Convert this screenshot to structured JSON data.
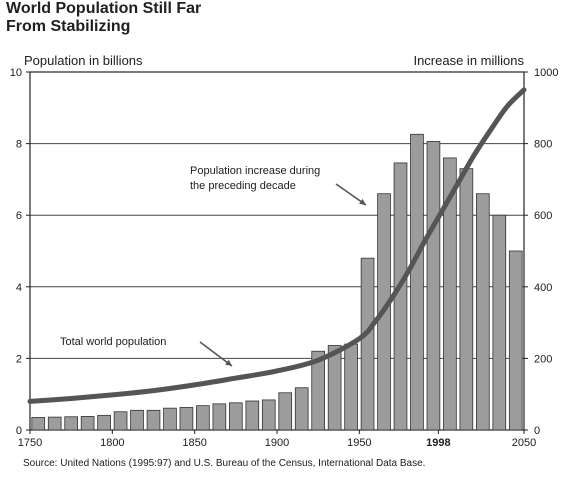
{
  "title_lines": [
    "World Population Still Far",
    "From Stabilizing"
  ],
  "source": "Source: United Nations (1995:97) and U.S. Bureau of the Census, International Data Base.",
  "chart_data": {
    "type": "bar+line",
    "title": "World Population Still Far From Stabilizing",
    "left_axis": {
      "label": "Population in billions",
      "range": [
        0,
        10
      ],
      "ticks": [
        0,
        2,
        4,
        6,
        8,
        10
      ]
    },
    "right_axis": {
      "label": "Increase in millions",
      "range": [
        0,
        1000
      ],
      "ticks": [
        0,
        200,
        400,
        600,
        800,
        1000
      ]
    },
    "x_axis": {
      "range": [
        1750,
        2050
      ],
      "ticks": [
        "1750",
        "1800",
        "1850",
        "1900",
        "1950",
        "1998",
        "2050"
      ],
      "bold_tick": "1998"
    },
    "grid": "horizontal",
    "series": [
      {
        "name": "Population increase during the preceding decade",
        "type": "bar",
        "axis": "right",
        "x": [
          1760,
          1770,
          1780,
          1790,
          1800,
          1810,
          1820,
          1830,
          1840,
          1850,
          1860,
          1870,
          1880,
          1890,
          1900,
          1910,
          1920,
          1930,
          1940,
          1950,
          1960,
          1970,
          1980,
          1990,
          2000,
          2010,
          2020,
          2030,
          2040,
          2050
        ],
        "values": [
          35,
          36,
          37,
          38,
          41,
          51,
          55,
          55,
          61,
          63,
          68,
          73,
          76,
          81,
          84,
          104,
          118,
          220,
          236,
          240,
          480,
          660,
          746,
          826,
          806,
          760,
          730,
          660,
          600,
          500
        ]
      },
      {
        "name": "Total world population",
        "type": "line",
        "axis": "left",
        "x": [
          1750,
          1775,
          1800,
          1825,
          1850,
          1875,
          1900,
          1925,
          1950,
          1960,
          1970,
          1980,
          1990,
          2000,
          2010,
          2020,
          2030,
          2040,
          2050
        ],
        "values": [
          0.8,
          0.88,
          0.98,
          1.1,
          1.26,
          1.45,
          1.65,
          1.95,
          2.55,
          3.05,
          3.7,
          4.45,
          5.3,
          6.1,
          6.9,
          7.7,
          8.4,
          9.05,
          9.5
        ]
      }
    ],
    "annotations": [
      {
        "text": [
          "Population increase during",
          "the preceding decade"
        ],
        "arrow_to_series": 0
      },
      {
        "text": [
          "Total world population"
        ],
        "arrow_to_series": 1
      }
    ]
  }
}
